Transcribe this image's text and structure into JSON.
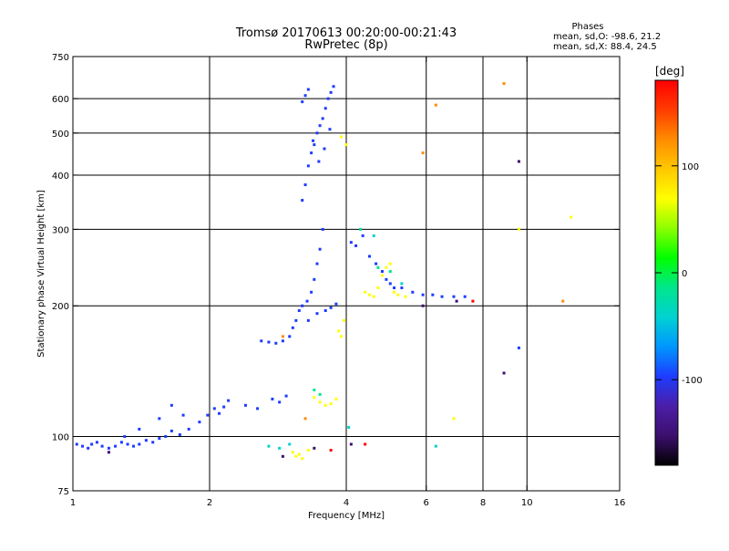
{
  "title_line1": "Tromsø 20170613 00:20:00-00:21:43",
  "title_line2": "RwPretec (8p)",
  "phases": {
    "header": "Phases",
    "o_line": "mean, sd,O: -98.6, 21.2",
    "x_line": "mean, sd,X:  88.4, 24.5"
  },
  "chart_data": {
    "type": "scatter",
    "title": "Tromsø 20170613 00:20:00-00:21:43",
    "subtitle": "RwPretec (8p)",
    "xlabel": "Frequency [MHz]",
    "ylabel": "Stationary phase Virtual Height [km]",
    "x_scale": "log",
    "y_scale": "log",
    "xlim": [
      1,
      16
    ],
    "ylim": [
      75,
      750
    ],
    "x_ticks": [
      1,
      2,
      4,
      6,
      8,
      10,
      16
    ],
    "y_ticks": [
      75,
      100,
      200,
      300,
      400,
      500,
      600,
      750
    ],
    "x_gridlines": [
      2,
      4,
      6,
      8,
      10
    ],
    "y_gridlines": [
      100,
      200,
      300,
      400,
      500,
      600
    ],
    "grid": true,
    "colorbar": {
      "label": "[deg]",
      "range": [
        -180,
        180
      ],
      "ticks": [
        100,
        0,
        -100
      ],
      "colors": [
        "#000000",
        "#3c0f6e",
        "#4b1ea8",
        "#1e3cff",
        "#0096ff",
        "#00d2d2",
        "#00e68c",
        "#00ff00",
        "#8cff00",
        "#ffff00",
        "#ffc800",
        "#ff8c00",
        "#ff3c00",
        "#ff0000"
      ]
    },
    "series": [
      {
        "color": "#1e3cff",
        "points": [
          [
            1.02,
            96
          ],
          [
            1.05,
            95
          ],
          [
            1.08,
            94
          ],
          [
            1.1,
            96
          ],
          [
            1.13,
            97
          ],
          [
            1.16,
            95
          ],
          [
            1.2,
            94
          ],
          [
            1.24,
            95
          ],
          [
            1.28,
            97
          ],
          [
            1.32,
            96
          ],
          [
            1.36,
            95
          ],
          [
            1.4,
            96
          ],
          [
            1.45,
            98
          ],
          [
            1.5,
            97
          ],
          [
            1.55,
            99
          ],
          [
            1.6,
            100
          ],
          [
            1.65,
            103
          ],
          [
            1.72,
            101
          ],
          [
            1.8,
            104
          ],
          [
            1.9,
            108
          ],
          [
            1.98,
            112
          ],
          [
            2.05,
            116
          ],
          [
            2.1,
            113
          ],
          [
            2.15,
            117
          ],
          [
            2.2,
            121
          ],
          [
            1.3,
            100
          ],
          [
            1.4,
            104
          ],
          [
            1.55,
            110
          ],
          [
            1.65,
            118
          ],
          [
            1.75,
            112
          ],
          [
            2.4,
            118
          ],
          [
            2.55,
            116
          ],
          [
            2.75,
            122
          ],
          [
            2.85,
            120
          ],
          [
            2.95,
            124
          ],
          [
            2.6,
            166
          ],
          [
            2.7,
            165
          ],
          [
            2.8,
            164
          ],
          [
            2.9,
            166
          ],
          [
            3.0,
            170
          ],
          [
            3.05,
            178
          ],
          [
            3.1,
            185
          ],
          [
            3.15,
            195
          ],
          [
            3.2,
            200
          ],
          [
            3.28,
            205
          ],
          [
            3.35,
            215
          ],
          [
            3.4,
            230
          ],
          [
            3.45,
            250
          ],
          [
            3.5,
            270
          ],
          [
            3.55,
            300
          ],
          [
            3.3,
            185
          ],
          [
            3.45,
            192
          ],
          [
            3.6,
            195
          ],
          [
            3.7,
            198
          ],
          [
            3.8,
            202
          ],
          [
            3.2,
            350
          ],
          [
            3.25,
            380
          ],
          [
            3.3,
            420
          ],
          [
            3.35,
            450
          ],
          [
            3.4,
            470
          ],
          [
            3.45,
            500
          ],
          [
            3.5,
            520
          ],
          [
            3.55,
            540
          ],
          [
            3.6,
            570
          ],
          [
            3.65,
            600
          ],
          [
            3.7,
            620
          ],
          [
            3.75,
            640
          ],
          [
            3.2,
            590
          ],
          [
            3.25,
            610
          ],
          [
            3.3,
            630
          ],
          [
            3.38,
            480
          ],
          [
            3.48,
            430
          ],
          [
            3.58,
            460
          ],
          [
            3.68,
            510
          ],
          [
            4.1,
            280
          ],
          [
            4.2,
            275
          ],
          [
            4.35,
            290
          ],
          [
            4.5,
            260
          ],
          [
            4.65,
            250
          ],
          [
            4.8,
            240
          ],
          [
            4.9,
            230
          ],
          [
            5.0,
            225
          ],
          [
            5.1,
            220
          ],
          [
            5.3,
            220
          ],
          [
            5.6,
            215
          ],
          [
            5.9,
            212
          ],
          [
            6.2,
            212
          ],
          [
            6.5,
            210
          ],
          [
            6.9,
            210
          ],
          [
            7.3,
            210
          ],
          [
            9.6,
            160
          ]
        ]
      },
      {
        "color": "#ffff00",
        "points": [
          [
            3.5,
            120
          ],
          [
            3.6,
            118
          ],
          [
            3.7,
            119
          ],
          [
            3.4,
            123
          ],
          [
            3.8,
            122
          ],
          [
            3.9,
            170
          ],
          [
            3.85,
            175
          ],
          [
            3.95,
            185
          ],
          [
            4.4,
            215
          ],
          [
            4.5,
            212
          ],
          [
            4.6,
            210
          ],
          [
            4.7,
            220
          ],
          [
            4.8,
            235
          ],
          [
            4.9,
            245
          ],
          [
            5.0,
            250
          ],
          [
            5.1,
            215
          ],
          [
            5.2,
            212
          ],
          [
            5.4,
            210
          ],
          [
            3.9,
            490
          ],
          [
            4.0,
            470
          ],
          [
            3.05,
            92
          ],
          [
            3.1,
            90
          ],
          [
            3.15,
            91
          ],
          [
            3.2,
            89
          ],
          [
            3.3,
            93
          ],
          [
            6.9,
            110
          ],
          [
            9.6,
            300
          ],
          [
            12.5,
            320
          ]
        ]
      },
      {
        "color": "#00d2d2",
        "points": [
          [
            2.7,
            95
          ],
          [
            2.85,
            94
          ],
          [
            3.0,
            96
          ],
          [
            4.05,
            105
          ],
          [
            4.6,
            290
          ],
          [
            5.3,
            225
          ],
          [
            6.3,
            95
          ]
        ]
      },
      {
        "color": "#ff8c00",
        "points": [
          [
            2.9,
            170
          ],
          [
            3.25,
            110
          ],
          [
            6.3,
            580
          ],
          [
            5.9,
            450
          ],
          [
            8.9,
            650
          ],
          [
            12.0,
            205
          ]
        ]
      },
      {
        "color": "#00e68c",
        "points": [
          [
            3.4,
            128
          ],
          [
            3.5,
            125
          ],
          [
            4.7,
            245
          ],
          [
            5.0,
            240
          ],
          [
            4.3,
            300
          ]
        ]
      },
      {
        "color": "#3c0f6e",
        "points": [
          [
            2.9,
            90
          ],
          [
            3.4,
            94
          ],
          [
            4.1,
            96
          ],
          [
            8.9,
            140
          ],
          [
            9.6,
            430
          ],
          [
            7.0,
            205
          ],
          [
            5.9,
            200
          ],
          [
            1.2,
            92
          ]
        ]
      },
      {
        "color": "#ff0000",
        "points": [
          [
            7.6,
            205
          ],
          [
            4.4,
            96
          ],
          [
            3.7,
            93
          ]
        ]
      }
    ]
  }
}
